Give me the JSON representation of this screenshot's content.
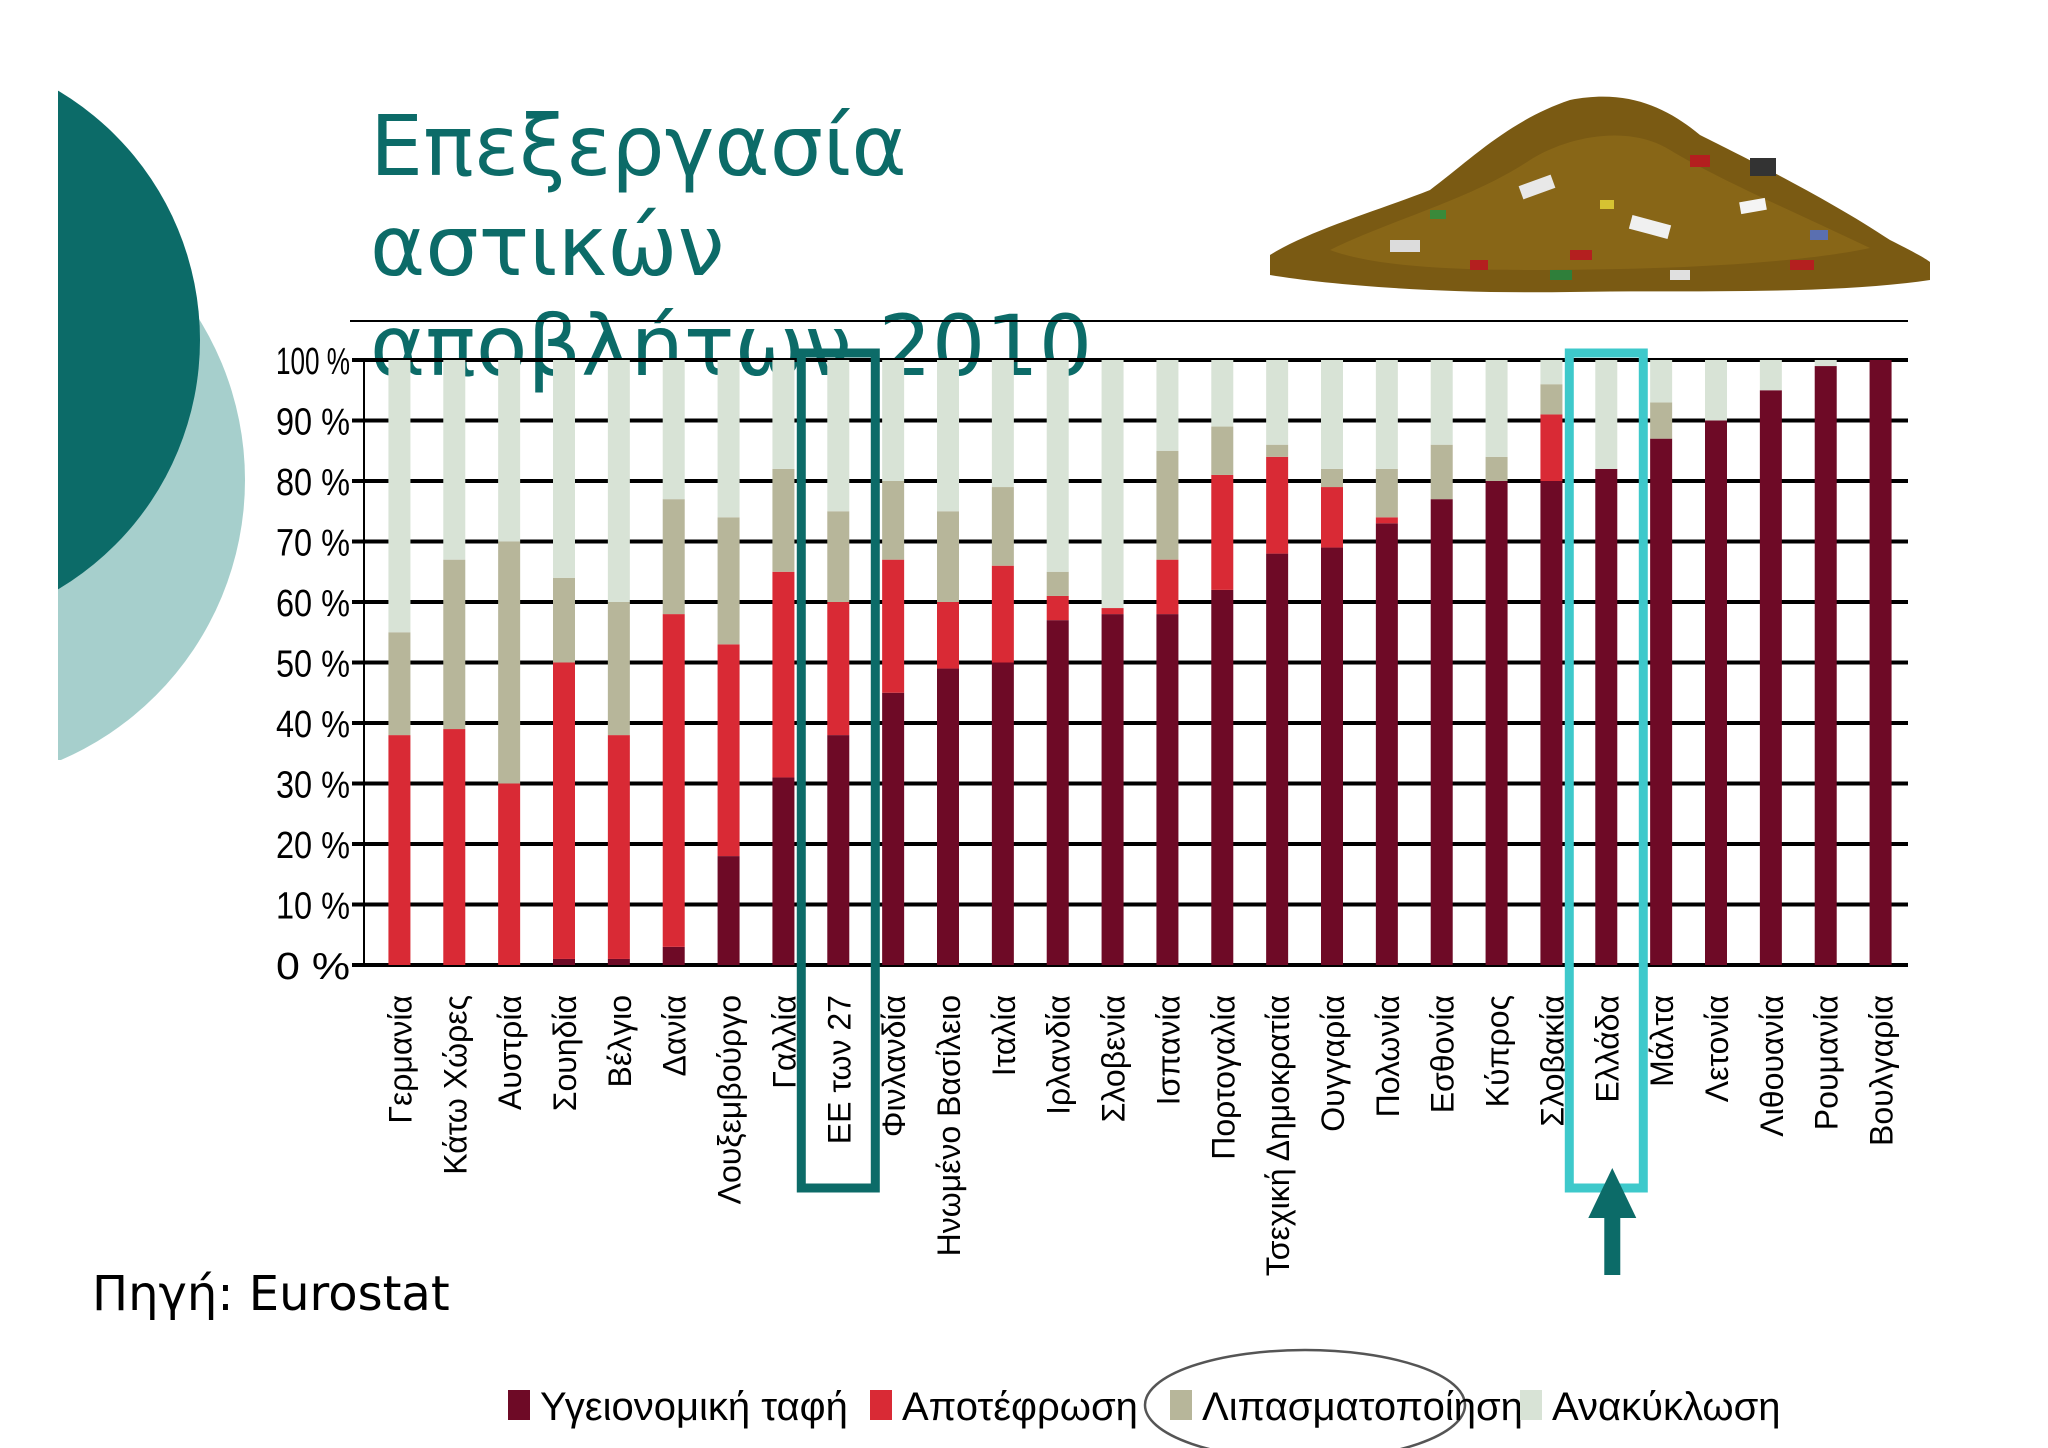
{
  "slide": {
    "title_line1": "Επεξεργασία αστικών",
    "title_line2": "αποβλήτων 2010",
    "source": "Πηγή: Eurostat"
  },
  "colors": {
    "landfill": "#6e0a26",
    "incineration": "#d92a35",
    "composting": "#b7b69a",
    "recycling": "#d8e3d6",
    "accent_dark": "#0c6b68",
    "accent_light": "#a6cfcc",
    "highlight_eu": "#0c6b68",
    "highlight_greece": "#3ec9cb"
  },
  "chart_data": {
    "type": "bar",
    "stacked": true,
    "ylim": [
      0,
      100
    ],
    "yticks": [
      "0 %",
      "10 %",
      "20 %",
      "30 %",
      "40 %",
      "50 %",
      "60 %",
      "70 %",
      "80 %",
      "90 %",
      "100 %"
    ],
    "grid": true,
    "legend_position": "bottom",
    "categories": [
      "Γερμανία",
      "Κάτω Χώρες",
      "Αυστρία",
      "Σουηδία",
      "Βέλγιο",
      "Δανία",
      "Λουξεμβούργο",
      "Γαλλία",
      "ΕΕ των 27",
      "Φινλανδία",
      "Ηνωμένο Βασίλειο",
      "Ιταλία",
      "Ιρλανδία",
      "Σλοβενία",
      "Ισπανία",
      "Πορτογαλία",
      "Τσεχική Δημοκρατία",
      "Ουγγαρία",
      "Πολωνία",
      "Εσθονία",
      "Κύπρος",
      "Σλοβακία",
      "Ελλάδα",
      "Μάλτα",
      "Λετονία",
      "Λιθουανία",
      "Ρουμανία",
      "Βουλγαρία"
    ],
    "series": [
      {
        "name": "Υγειονομική ταφή",
        "values": [
          0,
          0,
          0,
          1,
          1,
          3,
          18,
          31,
          38,
          45,
          49,
          50,
          57,
          58,
          58,
          62,
          68,
          69,
          73,
          77,
          80,
          80,
          82,
          87,
          90,
          95,
          99,
          100
        ]
      },
      {
        "name": "Αποτέφρωση",
        "values": [
          38,
          39,
          30,
          49,
          37,
          55,
          35,
          34,
          22,
          22,
          11,
          16,
          4,
          1,
          9,
          19,
          16,
          10,
          1,
          0,
          0,
          11,
          0,
          0,
          0,
          0,
          0,
          0
        ]
      },
      {
        "name": "Λιπασματοποίηση",
        "values": [
          17,
          28,
          40,
          14,
          22,
          19,
          21,
          17,
          15,
          13,
          15,
          13,
          4,
          0,
          18,
          8,
          2,
          3,
          8,
          9,
          4,
          5,
          0,
          6,
          0,
          0,
          0,
          0
        ]
      },
      {
        "name": "Ανακύκλωση",
        "values": [
          45,
          33,
          30,
          36,
          40,
          23,
          26,
          18,
          25,
          20,
          25,
          21,
          35,
          41,
          15,
          11,
          14,
          18,
          18,
          14,
          16,
          4,
          18,
          7,
          10,
          5,
          1,
          0
        ]
      }
    ],
    "highlights": [
      {
        "category": "ΕΕ των 27",
        "color": "#0c6b68"
      },
      {
        "category": "Ελλάδα",
        "color": "#3ec9cb"
      }
    ]
  }
}
